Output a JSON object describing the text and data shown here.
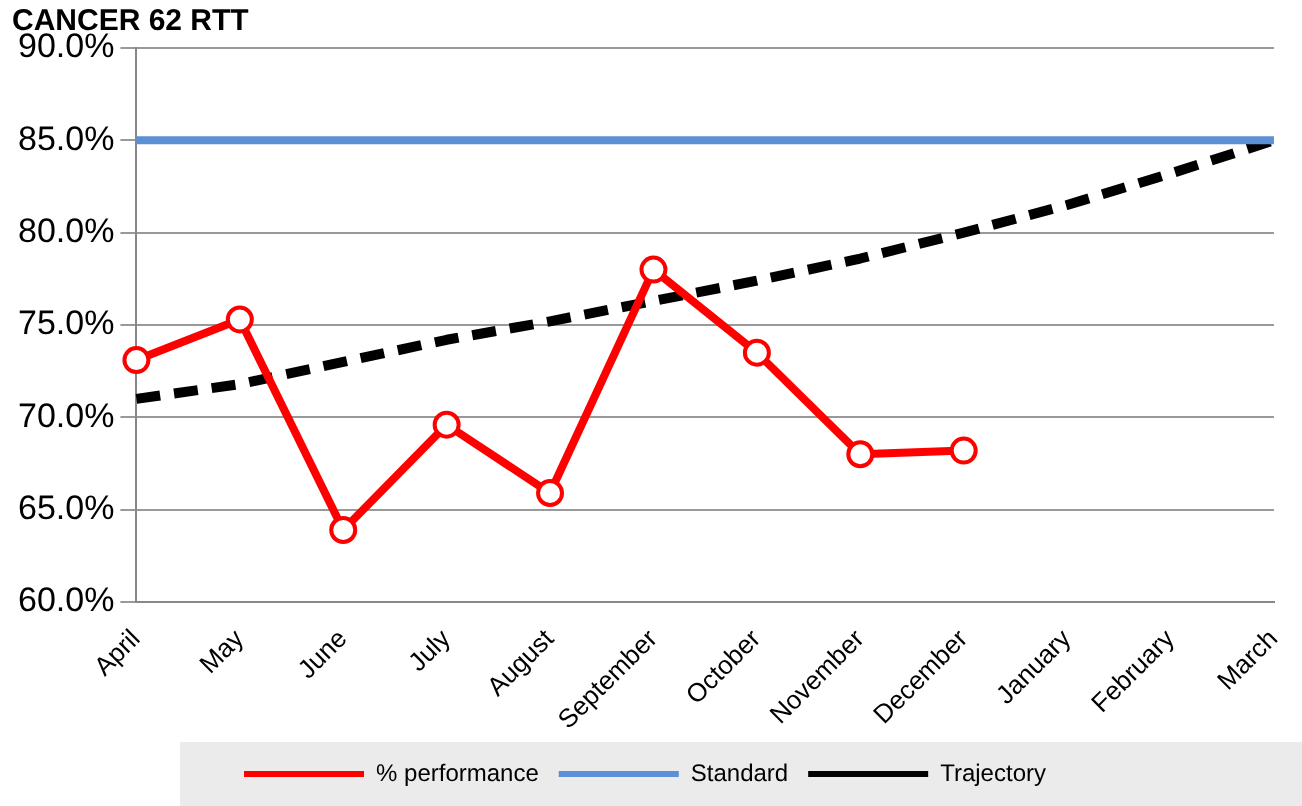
{
  "chart_data": {
    "type": "line",
    "title": "CANCER 62 RTT",
    "categories": [
      "April",
      "May",
      "June",
      "July",
      "August",
      "September",
      "October",
      "November",
      "December",
      "January",
      "February",
      "March"
    ],
    "series": [
      {
        "name": "% performance",
        "color": "#ff0000",
        "marker": "circle",
        "line_style": "solid",
        "values": [
          73.1,
          75.3,
          63.9,
          69.6,
          65.9,
          78.0,
          73.5,
          68.0,
          68.2,
          null,
          null,
          null
        ]
      },
      {
        "name": "Standard",
        "color": "#5b8fd6",
        "marker": "none",
        "line_style": "solid",
        "values": [
          85,
          85,
          85,
          85,
          85,
          85,
          85,
          85,
          85,
          85,
          85,
          85
        ]
      },
      {
        "name": "Trajectory",
        "color": "#000000",
        "marker": "none",
        "line_style": "dashed",
        "values": [
          71.0,
          71.8,
          73.0,
          74.2,
          75.2,
          76.3,
          77.4,
          78.6,
          80.0,
          81.5,
          83.2,
          85.0
        ]
      }
    ],
    "ylim": [
      60,
      90
    ],
    "yticks": [
      {
        "value": 60,
        "label": "60.0%"
      },
      {
        "value": 65,
        "label": "65.0%"
      },
      {
        "value": 70,
        "label": "70.0%"
      },
      {
        "value": 75,
        "label": "75.0%"
      },
      {
        "value": 80,
        "label": "80.0%"
      },
      {
        "value": 85,
        "label": "85.0%"
      },
      {
        "value": 90,
        "label": "90.0%"
      }
    ],
    "grid": "y",
    "legend": "bottom"
  }
}
